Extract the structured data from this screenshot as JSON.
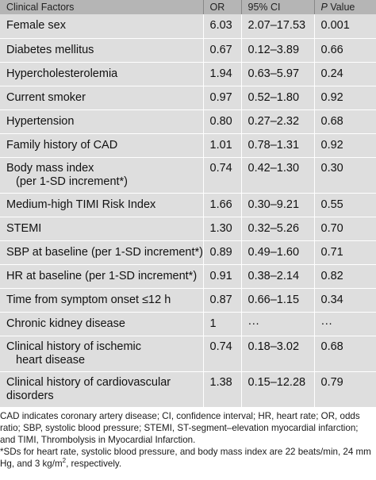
{
  "header": {
    "factor": "Clinical Factors",
    "or": "OR",
    "ci": "95% CI",
    "p_italic": "P",
    "p_rest": " Value"
  },
  "rows": [
    {
      "factor": "Female sex",
      "or": "6.03",
      "ci": "2.07–17.53",
      "p": "0.001"
    },
    {
      "factor": "Diabetes mellitus",
      "or": "0.67",
      "ci": "0.12–3.89",
      "p": "0.66"
    },
    {
      "factor": "Hypercholesterolemia",
      "or": "1.94",
      "ci": "0.63–5.97",
      "p": "0.24"
    },
    {
      "factor": "Current smoker",
      "or": "0.97",
      "ci": "0.52–1.80",
      "p": "0.92"
    },
    {
      "factor": "Hypertension",
      "or": "0.80",
      "ci": "0.27–2.32",
      "p": "0.68"
    },
    {
      "factor": "Family history of CAD",
      "or": "1.01",
      "ci": "0.78–1.31",
      "p": "0.92"
    },
    {
      "factor": "Body mass index",
      "factor2": "(per 1-SD increment*)",
      "or": "0.74",
      "ci": "0.42–1.30",
      "p": "0.30"
    },
    {
      "factor": "Medium-high TIMI Risk Index",
      "or": "1.66",
      "ci": "0.30–9.21",
      "p": "0.55"
    },
    {
      "factor": "STEMI",
      "or": "1.30",
      "ci": "0.32–5.26",
      "p": "0.70"
    },
    {
      "factor": "SBP at baseline (per 1-SD increment*)",
      "or": "0.89",
      "ci": "0.49–1.60",
      "p": "0.71"
    },
    {
      "factor": "HR at baseline (per 1-SD increment*)",
      "or": "0.91",
      "ci": "0.38–2.14",
      "p": "0.82"
    },
    {
      "factor": "Time from symptom onset ≤12 h",
      "or": "0.87",
      "ci": "0.66–1.15",
      "p": "0.34"
    },
    {
      "factor": "Chronic kidney disease",
      "or": "1",
      "ci": "···",
      "p": "···"
    },
    {
      "factor": "Clinical history of ischemic",
      "factor2": "heart disease",
      "or": "0.74",
      "ci": "0.18–3.02",
      "p": "0.68"
    },
    {
      "factor": "Clinical history of cardiovascular",
      "factor2": "disorders",
      "or": "1.38",
      "ci": "0.15–12.28",
      "p": "0.79"
    }
  ],
  "footnotes": {
    "abbreviations": "CAD indicates coronary artery disease; CI, confidence interval; HR, heart rate; OR, odds ratio; SBP, systolic blood pressure; STEMI, ST-segment–elevation myocardial infarction; and TIMI, Thrombolysis in Myocardial Infarction.",
    "sd_note_a": "*SDs for heart rate, systolic blood pressure, and body mass index are 22 beats/min, 24 mm Hg, and 3 kg/m",
    "sd_note_sup": "2",
    "sd_note_b": ", respectively."
  }
}
